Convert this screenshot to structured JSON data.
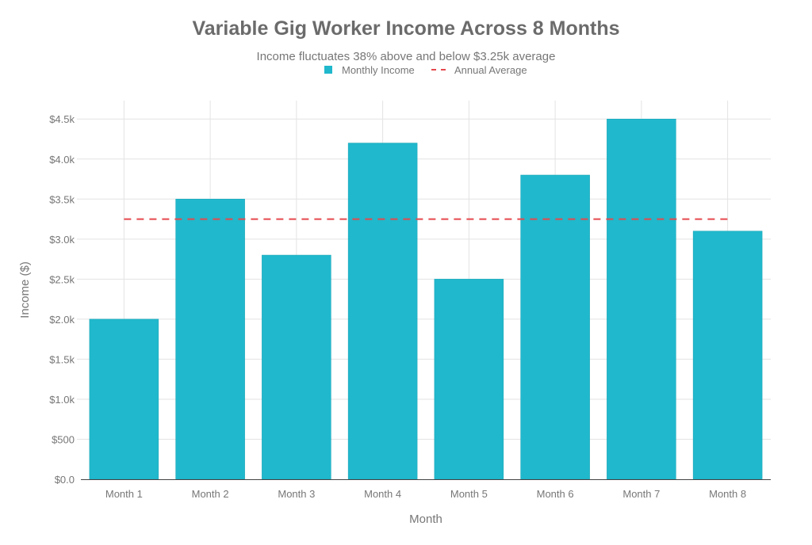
{
  "chart_data": {
    "type": "bar",
    "title": "Variable Gig Worker Income Across 8 Months",
    "subtitle": "Income fluctuates 38% above and below $3.25k average",
    "xlabel": "Month",
    "ylabel": "Income ($)",
    "categories": [
      "Month 1",
      "Month 2",
      "Month 3",
      "Month 4",
      "Month 5",
      "Month 6",
      "Month 7",
      "Month 8"
    ],
    "series": [
      {
        "name": "Monthly Income",
        "type": "bar",
        "color": "#20b8cc",
        "values": [
          2000,
          3500,
          2800,
          4200,
          2500,
          3800,
          4500,
          3100
        ]
      },
      {
        "name": "Annual Average",
        "type": "line",
        "style": "dashed",
        "color": "#e5484d",
        "values": [
          3250,
          3250,
          3250,
          3250,
          3250,
          3250,
          3250,
          3250
        ]
      }
    ],
    "ylim": [
      0,
      4730
    ],
    "yticks": [
      0,
      500,
      1000,
      1500,
      2000,
      2500,
      3000,
      3500,
      4000,
      4500
    ],
    "ytick_labels": [
      "$0.0",
      "$500",
      "$1.0k",
      "$1.5k",
      "$2.0k",
      "$2.5k",
      "$3.0k",
      "$3.5k",
      "$4.0k",
      "$4.5k"
    ],
    "grid": true,
    "legend_position": "top-center"
  }
}
